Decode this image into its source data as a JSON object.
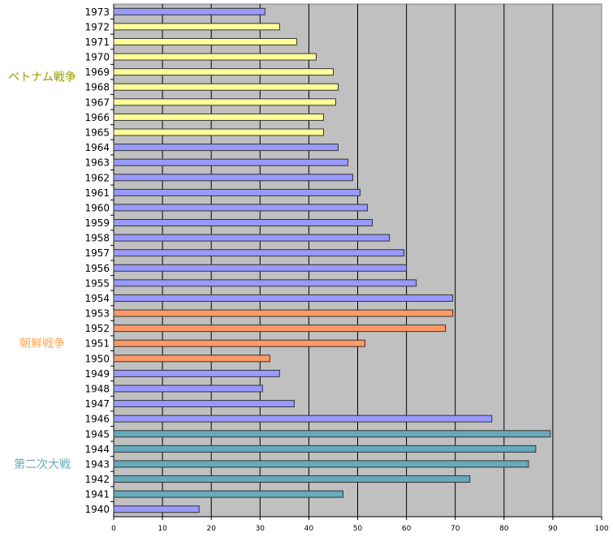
{
  "chart_data": {
    "type": "bar",
    "orientation": "horizontal",
    "title": "",
    "xlabel": "",
    "ylabel": "",
    "xlim": [
      0,
      100
    ],
    "x_ticks": [
      0,
      10,
      20,
      30,
      40,
      50,
      60,
      70,
      80,
      90,
      100
    ],
    "grid": "vertical",
    "plot_background": "#c0c0c0",
    "categories": [
      "1973",
      "1972",
      "1971",
      "1970",
      "1969",
      "1968",
      "1967",
      "1966",
      "1965",
      "1964",
      "1963",
      "1962",
      "1961",
      "1960",
      "1959",
      "1958",
      "1957",
      "1956",
      "1955",
      "1954",
      "1953",
      "1952",
      "1951",
      "1950",
      "1949",
      "1948",
      "1947",
      "1946",
      "1945",
      "1944",
      "1943",
      "1942",
      "1941",
      "1940"
    ],
    "values": [
      31,
      34,
      37.5,
      41.5,
      45,
      46,
      45.5,
      43,
      43,
      46,
      48,
      49,
      50.5,
      52,
      53,
      56.5,
      59.5,
      60,
      62,
      69.5,
      69.5,
      68,
      51.5,
      32,
      34,
      30.5,
      37,
      77.5,
      89.5,
      86.5,
      85,
      73,
      47,
      17.5
    ],
    "bar_colors": {
      "peace": "#9999ff",
      "vietnam": "#ffff99",
      "korea": "#ff9966",
      "ww2": "#66aabb"
    },
    "period": [
      "peace",
      "vietnam",
      "vietnam",
      "vietnam",
      "vietnam",
      "vietnam",
      "vietnam",
      "vietnam",
      "vietnam",
      "peace",
      "peace",
      "peace",
      "peace",
      "peace",
      "peace",
      "peace",
      "peace",
      "peace",
      "peace",
      "peace",
      "korea",
      "korea",
      "korea",
      "korea",
      "peace",
      "peace",
      "peace",
      "peace",
      "ww2",
      "ww2",
      "ww2",
      "ww2",
      "ww2",
      "peace"
    ],
    "annotations": [
      {
        "text": "ベトナム戦争",
        "color": "#999900",
        "anchor_category": "1969"
      },
      {
        "text": "朝鮮戦争",
        "color": "#ffaa55",
        "anchor_category": "1951"
      },
      {
        "text": "第二次大戦",
        "color": "#66aabb",
        "anchor_category": "1943"
      }
    ]
  }
}
